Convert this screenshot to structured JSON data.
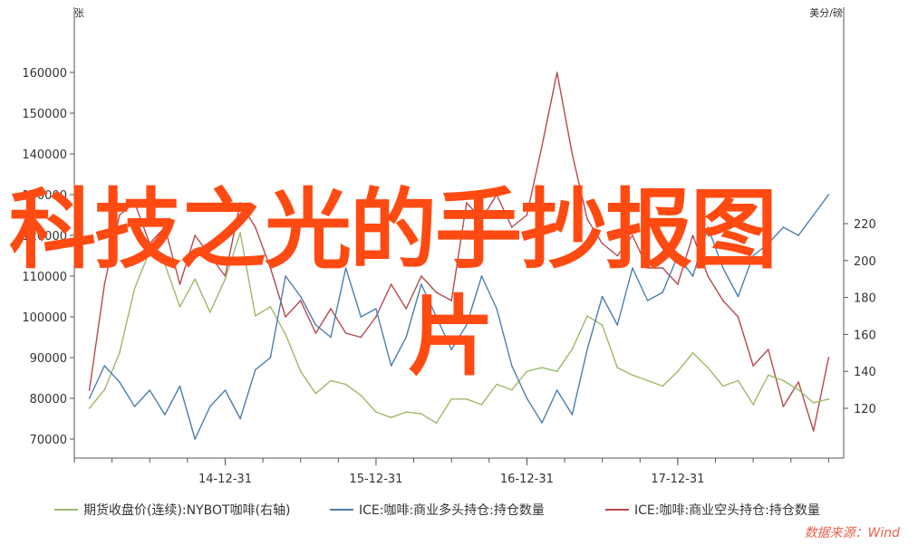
{
  "overlay": {
    "title_line1": "科技之光的手抄报图",
    "title_line2": "片"
  },
  "source_text": "数据来源：Wind",
  "chart_data": {
    "type": "line",
    "left_axis": {
      "unit": "张",
      "ylim": [
        65000,
        165000
      ],
      "ticks": [
        70000,
        80000,
        90000,
        100000,
        110000,
        120000,
        130000,
        140000,
        150000,
        160000
      ]
    },
    "right_axis": {
      "unit": "美分/磅",
      "ylim": [
        105,
        225
      ],
      "ticks": [
        120,
        140,
        160,
        180,
        200,
        220
      ]
    },
    "x_axis": {
      "ticks": [
        "14-12-31",
        "15-12-31",
        "16-12-31",
        "17-12-31"
      ]
    },
    "grid": false,
    "legend_position": "bottom",
    "colors": {
      "price": "#9cb96a",
      "long": "#4a7fae",
      "short": "#b5494d",
      "axis": "#555555"
    },
    "series": [
      {
        "name": "期货收盘价(连续):NYBOT咖啡(右轴)",
        "axis": "right",
        "color": "#9cb96a",
        "x": [
          2013.1,
          2013.2,
          2013.3,
          2013.4,
          2013.5,
          2013.6,
          2013.7,
          2013.8,
          2013.9,
          2014.0,
          2014.1,
          2014.2,
          2014.3,
          2014.4,
          2014.5,
          2014.6,
          2014.7,
          2014.8,
          2014.9,
          2015.0,
          2015.1,
          2015.2,
          2015.3,
          2015.4,
          2015.5,
          2015.6,
          2015.7,
          2015.8,
          2015.9,
          2016.0,
          2016.1,
          2016.2,
          2016.3,
          2016.4,
          2016.5,
          2016.6,
          2016.7,
          2016.8,
          2016.9,
          2017.0,
          2017.1,
          2017.2,
          2017.3,
          2017.4,
          2017.5,
          2017.6,
          2017.7,
          2017.8,
          2017.9,
          2018.0
        ],
        "values": [
          120,
          130,
          150,
          185,
          205,
          198,
          175,
          190,
          172,
          190,
          215,
          170,
          175,
          160,
          140,
          128,
          135,
          133,
          127,
          118,
          115,
          118,
          117,
          112,
          125,
          125,
          122,
          133,
          130,
          140,
          142,
          140,
          152,
          170,
          165,
          142,
          138,
          135,
          132,
          140,
          150,
          142,
          132,
          135,
          122,
          138,
          135,
          130,
          123,
          125
        ]
      },
      {
        "name": "ICE:咖啡:商业多头持仓:持仓数量",
        "axis": "left",
        "color": "#4a7fae",
        "x": [
          2013.1,
          2013.2,
          2013.3,
          2013.4,
          2013.5,
          2013.6,
          2013.7,
          2013.8,
          2013.9,
          2014.0,
          2014.1,
          2014.2,
          2014.3,
          2014.4,
          2014.5,
          2014.6,
          2014.7,
          2014.8,
          2014.9,
          2015.0,
          2015.1,
          2015.2,
          2015.3,
          2015.4,
          2015.5,
          2015.6,
          2015.7,
          2015.8,
          2015.9,
          2016.0,
          2016.1,
          2016.2,
          2016.3,
          2016.4,
          2016.5,
          2016.6,
          2016.7,
          2016.8,
          2016.9,
          2017.0,
          2017.1,
          2017.2,
          2017.3,
          2017.4,
          2017.5,
          2017.6,
          2017.7,
          2017.8,
          2017.9,
          2018.0
        ],
        "values": [
          80000,
          88000,
          84000,
          78000,
          82000,
          76000,
          83000,
          70000,
          78000,
          82000,
          75000,
          87000,
          90000,
          110000,
          105000,
          98000,
          95000,
          112000,
          100000,
          102000,
          88000,
          95000,
          108000,
          100000,
          92000,
          98000,
          110000,
          102000,
          88000,
          80000,
          74000,
          82000,
          76000,
          92000,
          105000,
          98000,
          112000,
          104000,
          106000,
          115000,
          110000,
          122000,
          112000,
          105000,
          115000,
          118000,
          122000,
          120000,
          125000,
          130000
        ]
      },
      {
        "name": "ICE:咖啡:商业空头持仓:持仓数量",
        "axis": "left",
        "color": "#b5494d",
        "x": [
          2013.1,
          2013.2,
          2013.3,
          2013.4,
          2013.5,
          2013.6,
          2013.7,
          2013.8,
          2013.9,
          2014.0,
          2014.1,
          2014.2,
          2014.3,
          2014.4,
          2014.5,
          2014.6,
          2014.7,
          2014.8,
          2014.9,
          2015.0,
          2015.1,
          2015.2,
          2015.3,
          2015.4,
          2015.5,
          2015.6,
          2015.7,
          2015.8,
          2015.9,
          2016.0,
          2016.1,
          2016.2,
          2016.3,
          2016.4,
          2016.5,
          2016.6,
          2016.7,
          2016.8,
          2016.9,
          2017.0,
          2017.1,
          2017.2,
          2017.3,
          2017.4,
          2017.5,
          2017.6,
          2017.7,
          2017.8,
          2017.9,
          2018.0
        ],
        "values": [
          82000,
          108000,
          125000,
          128000,
          118000,
          122000,
          108000,
          120000,
          115000,
          110000,
          128000,
          122000,
          112000,
          100000,
          104000,
          96000,
          102000,
          96000,
          95000,
          100000,
          108000,
          102000,
          110000,
          106000,
          104000,
          128000,
          124000,
          130000,
          122000,
          125000,
          142000,
          160000,
          140000,
          124000,
          118000,
          115000,
          120000,
          112000,
          112000,
          108000,
          120000,
          110000,
          104000,
          100000,
          88000,
          92000,
          78000,
          84000,
          72000,
          90000
        ]
      }
    ]
  }
}
